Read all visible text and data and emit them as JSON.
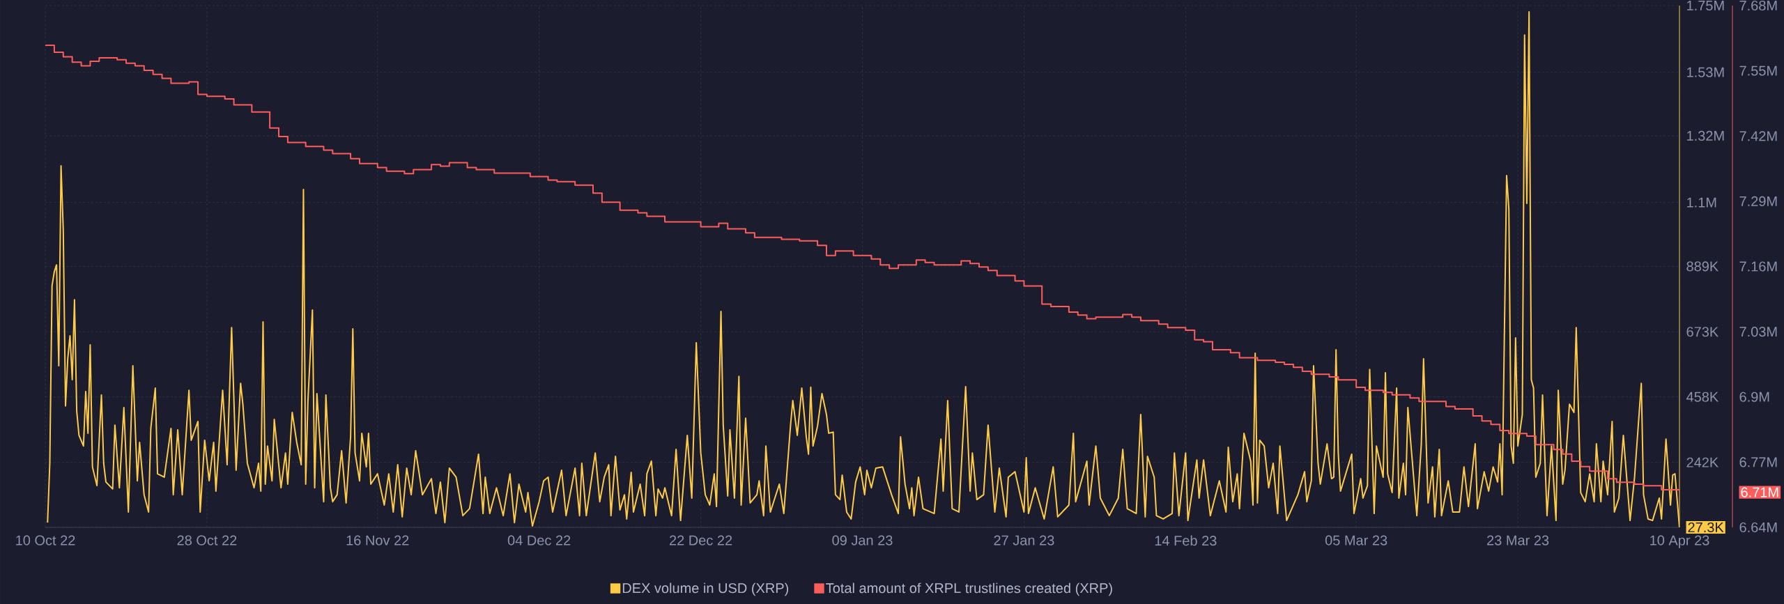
{
  "chart_data": {
    "type": "line",
    "xlim": [
      "2022-10-10",
      "2023-04-10"
    ],
    "xticks": [
      {
        "value": "2022-10-10",
        "label": "10 Oct 22"
      },
      {
        "value": "2022-10-28",
        "label": "28 Oct 22"
      },
      {
        "value": "2022-11-16",
        "label": "16 Nov 22"
      },
      {
        "value": "2022-12-04",
        "label": "04 Dec 22"
      },
      {
        "value": "2022-12-22",
        "label": "22 Dec 22"
      },
      {
        "value": "2023-01-09",
        "label": "09 Jan 23"
      },
      {
        "value": "2023-01-27",
        "label": "27 Jan 23"
      },
      {
        "value": "2023-02-14",
        "label": "14 Feb 23"
      },
      {
        "value": "2023-03-05",
        "label": "05 Mar 23"
      },
      {
        "value": "2023-03-23",
        "label": "23 Mar 23"
      },
      {
        "value": "2023-04-10",
        "label": "10 Apr 23"
      }
    ],
    "ylim": [
      27300,
      1750000
    ],
    "yticks": [
      {
        "value": 27300,
        "label": "27.3K"
      },
      {
        "value": 242000,
        "label": "242K"
      },
      {
        "value": 458000,
        "label": "458K"
      },
      {
        "value": 673000,
        "label": "673K"
      },
      {
        "value": 889000,
        "label": "889K"
      },
      {
        "value": 1100000,
        "label": "1.1M"
      },
      {
        "value": 1320000,
        "label": "1.32M"
      },
      {
        "value": 1530000,
        "label": "1.53M"
      },
      {
        "value": 1750000,
        "label": "1.75M"
      }
    ],
    "y2lim": [
      6640000,
      7680000
    ],
    "y2ticks": [
      {
        "value": 6640000,
        "label": "6.64M"
      },
      {
        "value": 6710000,
        "label": "6.71M"
      },
      {
        "value": 6770000,
        "label": "6.77M"
      },
      {
        "value": 6900000,
        "label": "6.9M"
      },
      {
        "value": 7030000,
        "label": "7.03M"
      },
      {
        "value": 7160000,
        "label": "7.16M"
      },
      {
        "value": 7290000,
        "label": "7.29M"
      },
      {
        "value": 7420000,
        "label": "7.42M"
      },
      {
        "value": 7550000,
        "label": "7.55M"
      },
      {
        "value": 7680000,
        "label": "7.68M"
      }
    ],
    "grid": true,
    "legend": "bottom",
    "series": [
      {
        "name": "DEX volume in USD (XRP)",
        "color": "#ffcb47",
        "x": [
          "2022-10-10T06:00",
          "2022-10-10T12:00",
          "2022-10-10T18:00",
          "2022-10-11T00:00",
          "2022-10-11T06:00",
          "2022-10-11T12:00",
          "2022-10-11T18:00",
          "2022-10-12T00:00",
          "2022-10-12T06:00",
          "2022-10-12T12:00",
          "2022-10-12T18:00",
          "2022-10-13T00:00",
          "2022-10-13T06:00",
          "2022-10-13T12:00",
          "2022-10-13T18:00",
          "2022-10-14T06:00",
          "2022-10-14T12:00",
          "2022-10-14T18:00",
          "2022-10-15T00:00",
          "2022-10-15T06:00",
          "2022-10-15T18:00",
          "2022-10-16T06:00",
          "2022-10-16T12:00",
          "2022-10-16T18:00",
          "2022-10-17T12:00",
          "2022-10-17T18:00",
          "2022-10-18T06:00",
          "2022-10-18T18:00",
          "2022-10-19T06:00",
          "2022-10-19T18:00",
          "2022-10-20T06:00",
          "2022-10-20T12:00",
          "2022-10-21T00:00",
          "2022-10-21T12:00",
          "2022-10-21T18:00",
          "2022-10-22T06:00",
          "2022-10-22T12:00",
          "2022-10-23T06:00",
          "2022-10-24T00:00",
          "2022-10-24T06:00",
          "2022-10-24T18:00",
          "2022-10-25T06:00",
          "2022-10-26T00:00",
          "2022-10-26T06:00",
          "2022-10-27T00:00",
          "2022-10-27T06:00",
          "2022-10-27T18:00",
          "2022-10-28T06:00",
          "2022-10-28T18:00",
          "2022-10-29T00:00",
          "2022-10-29T18:00",
          "2022-10-30T06:00",
          "2022-10-30T18:00",
          "2022-10-31T06:00",
          "2022-10-31T18:00",
          "2022-11-01T00:00",
          "2022-11-01T12:00",
          "2022-11-02T06:00",
          "2022-11-02T18:00",
          "2022-11-03T00:00",
          "2022-11-03T06:00",
          "2022-11-03T12:00",
          "2022-11-03T18:00",
          "2022-11-04T06:00",
          "2022-11-04T12:00",
          "2022-11-05T06:00",
          "2022-11-05T18:00",
          "2022-11-06T00:00",
          "2022-11-06T12:00",
          "2022-11-07T00:00",
          "2022-11-07T12:00",
          "2022-11-07T18:00",
          "2022-11-08T00:00",
          "2022-11-08T06:00",
          "2022-11-08T18:00",
          "2022-11-09T00:00",
          "2022-11-09T06:00",
          "2022-11-10T00:00",
          "2022-11-10T06:00",
          "2022-11-10T18:00",
          "2022-11-11T00:00",
          "2022-11-11T12:00",
          "2022-11-12T00:00",
          "2022-11-12T12:00",
          "2022-11-13T00:00",
          "2022-11-13T06:00",
          "2022-11-13T12:00",
          "2022-11-14T00:00",
          "2022-11-14T06:00",
          "2022-11-14T18:00",
          "2022-11-15T00:00",
          "2022-11-15T06:00",
          "2022-11-16T00:00",
          "2022-11-16T18:00",
          "2022-11-17T06:00",
          "2022-11-17T18:00",
          "2022-11-18T06:00",
          "2022-11-18T18:00",
          "2022-11-19T06:00",
          "2022-11-19T18:00",
          "2022-11-20T06:00",
          "2022-11-21T00:00",
          "2022-11-22T00:00",
          "2022-11-22T12:00",
          "2022-11-23T00:00",
          "2022-11-23T12:00",
          "2022-11-24T00:00",
          "2022-11-24T18:00",
          "2022-11-25T12:00",
          "2022-11-26T06:00",
          "2022-11-27T06:00",
          "2022-11-27T18:00",
          "2022-11-28T00:00",
          "2022-11-28T12:00",
          "2022-11-29T06:00",
          "2022-11-30T00:00",
          "2022-11-30T18:00",
          "2022-12-01T06:00",
          "2022-12-01T18:00",
          "2022-12-02T12:00",
          "2022-12-02T18:00",
          "2022-12-03T06:00",
          "2022-12-04T00:00",
          "2022-12-04T12:00",
          "2022-12-05T00:00",
          "2022-12-05T12:00",
          "2022-12-06T12:00",
          "2022-12-07T00:00",
          "2022-12-08T00:00",
          "2022-12-08T12:00",
          "2022-12-08T18:00",
          "2022-12-09T06:00",
          "2022-12-10T06:00",
          "2022-12-10T18:00",
          "2022-12-11T06:00",
          "2022-12-11T18:00",
          "2022-12-12T00:00",
          "2022-12-12T12:00",
          "2022-12-13T00:00",
          "2022-12-13T12:00",
          "2022-12-13T18:00",
          "2022-12-14T06:00",
          "2022-12-14T12:00",
          "2022-12-15T06:00",
          "2022-12-15T18:00",
          "2022-12-16T00:00",
          "2022-12-16T12:00",
          "2022-12-17T00:00",
          "2022-12-17T06:00",
          "2022-12-17T18:00",
          "2022-12-18T00:00",
          "2022-12-18T18:00",
          "2022-12-19T06:00",
          "2022-12-19T18:00",
          "2022-12-20T12:00",
          "2022-12-21T00:00",
          "2022-12-21T12:00",
          "2022-12-22T00:00",
          "2022-12-22T12:00",
          "2022-12-23T00:00",
          "2022-12-23T12:00",
          "2022-12-23T18:00",
          "2022-12-24T06:00",
          "2022-12-24T12:00",
          "2022-12-25T00:00",
          "2022-12-25T06:00",
          "2022-12-25T18:00",
          "2022-12-26T06:00",
          "2022-12-26T12:00",
          "2022-12-27T00:00",
          "2022-12-27T12:00",
          "2022-12-28T06:00",
          "2022-12-28T12:00",
          "2022-12-29T00:00",
          "2022-12-29T06:00",
          "2022-12-29T18:00",
          "2022-12-30T06:00",
          "2022-12-30T18:00",
          "2022-12-31T06:00",
          "2023-01-01T00:00",
          "2023-01-01T06:00",
          "2023-01-01T18:00",
          "2023-01-02T06:00",
          "2023-01-02T18:00",
          "2023-01-03T00:00",
          "2023-01-03T06:00",
          "2023-01-03T12:00",
          "2023-01-04T00:00",
          "2023-01-04T12:00",
          "2023-01-05T00:00",
          "2023-01-05T06:00",
          "2023-01-05T18:00",
          "2023-01-06T00:00",
          "2023-01-06T12:00",
          "2023-01-06T18:00",
          "2023-01-07T06:00",
          "2023-01-07T18:00",
          "2023-01-08T06:00",
          "2023-01-08T18:00",
          "2023-01-09T06:00",
          "2023-01-09T12:00",
          "2023-01-10T00:00",
          "2023-01-10T12:00",
          "2023-01-11T06:00",
          "2023-01-12T06:00",
          "2023-01-13T00:00",
          "2023-01-13T06:00",
          "2023-01-13T18:00",
          "2023-01-14T06:00",
          "2023-01-14T12:00",
          "2023-01-14T18:00",
          "2023-01-15T06:00",
          "2023-01-15T18:00",
          "2023-01-17T00:00",
          "2023-01-17T18:00",
          "2023-01-18T00:00",
          "2023-01-18T12:00",
          "2023-01-19T00:00",
          "2023-01-19T18:00",
          "2023-01-20T12:00",
          "2023-01-21T00:00",
          "2023-01-21T06:00",
          "2023-01-21T18:00",
          "2023-01-22T12:00",
          "2023-01-23T00:00",
          "2023-01-23T18:00",
          "2023-01-24T06:00",
          "2023-01-25T00:00",
          "2023-01-25T06:00",
          "2023-01-26T00:00",
          "2023-01-27T00:00",
          "2023-01-27T06:00",
          "2023-01-27T12:00",
          "2023-01-28T06:00",
          "2023-01-29T06:00",
          "2023-01-30T06:00",
          "2023-01-30T18:00",
          "2023-02-01T00:00",
          "2023-02-01T12:00",
          "2023-02-01T18:00",
          "2023-02-03T00:00",
          "2023-02-03T06:00",
          "2023-02-04T00:00",
          "2023-02-04T12:00",
          "2023-02-05T12:00",
          "2023-02-06T12:00",
          "2023-02-07T00:00",
          "2023-02-07T12:00",
          "2023-02-08T12:00",
          "2023-02-09T00:00",
          "2023-02-09T12:00",
          "2023-02-09T18:00",
          "2023-02-10T12:00",
          "2023-02-10T18:00",
          "2023-02-11T12:00",
          "2023-02-12T12:00",
          "2023-02-12T18:00",
          "2023-02-13T06:00",
          "2023-02-14T00:00",
          "2023-02-14T06:00",
          "2023-02-15T06:00",
          "2023-02-15T12:00",
          "2023-02-16T00:00",
          "2023-02-16T18:00",
          "2023-02-17T18:00",
          "2023-02-18T12:00",
          "2023-02-18T18:00",
          "2023-02-19T06:00",
          "2023-02-19T18:00",
          "2023-02-20T00:00",
          "2023-02-20T12:00",
          "2023-02-21T06:00",
          "2023-02-21T12:00",
          "2023-02-21T18:00",
          "2023-02-22T00:00",
          "2023-02-22T06:00",
          "2023-02-22T18:00",
          "2023-02-23T06:00",
          "2023-02-23T18:00",
          "2023-02-24T06:00",
          "2023-02-24T12:00",
          "2023-02-25T06:00",
          "2023-02-26T12:00",
          "2023-02-27T06:00",
          "2023-02-27T12:00",
          "2023-02-28T00:00",
          "2023-02-28T06:00",
          "2023-02-28T18:00",
          "2023-03-01T00:00",
          "2023-03-01T18:00",
          "2023-03-02T06:00",
          "2023-03-02T12:00",
          "2023-03-02T18:00",
          "2023-03-03T00:00",
          "2023-03-03T06:00",
          "2023-03-04T12:00",
          "2023-03-04T18:00",
          "2023-03-05T12:00",
          "2023-03-05T18:00",
          "2023-03-06T06:00",
          "2023-03-06T12:00",
          "2023-03-07T00:00",
          "2023-03-07T06:00",
          "2023-03-08T00:00",
          "2023-03-08T06:00",
          "2023-03-08T12:00",
          "2023-03-09T00:00",
          "2023-03-09T12:00",
          "2023-03-09T18:00",
          "2023-03-10T06:00",
          "2023-03-10T12:00",
          "2023-03-10T18:00",
          "2023-03-11T18:00",
          "2023-03-12T06:00",
          "2023-03-12T12:00",
          "2023-03-13T00:00",
          "2023-03-13T12:00",
          "2023-03-13T18:00",
          "2023-03-14T06:00",
          "2023-03-14T12:00",
          "2023-03-15T06:00",
          "2023-03-15T18:00",
          "2023-03-16T12:00",
          "2023-03-17T00:00",
          "2023-03-17T12:00",
          "2023-03-18T06:00",
          "2023-03-18T12:00",
          "2023-03-19T06:00",
          "2023-03-19T18:00",
          "2023-03-20T06:00",
          "2023-03-20T18:00",
          "2023-03-21T00:00",
          "2023-03-21T06:00",
          "2023-03-21T18:00",
          "2023-03-22T00:00",
          "2023-03-22T06:00",
          "2023-03-22T12:00",
          "2023-03-22T18:00",
          "2023-03-23T00:00",
          "2023-03-23T12:00",
          "2023-03-23T18:00",
          "2023-03-24T00:00",
          "2023-03-24T06:00",
          "2023-03-24T12:00",
          "2023-03-24T18:00",
          "2023-03-25T00:00",
          "2023-03-25T12:00",
          "2023-03-25T18:00",
          "2023-03-26T06:00",
          "2023-03-26T18:00",
          "2023-03-27T06:00",
          "2023-03-27T12:00",
          "2023-03-28T00:00",
          "2023-03-28T06:00",
          "2023-03-28T18:00",
          "2023-03-29T06:00",
          "2023-03-29T12:00",
          "2023-03-30T00:00",
          "2023-03-30T12:00",
          "2023-03-31T00:00",
          "2023-03-31T12:00",
          "2023-03-31T18:00",
          "2023-04-01T06:00",
          "2023-04-01T12:00",
          "2023-04-02T00:00",
          "2023-04-02T12:00",
          "2023-04-02T18:00",
          "2023-04-03T06:00",
          "2023-04-03T18:00",
          "2023-04-04T12:00",
          "2023-04-05T00:00",
          "2023-04-05T18:00",
          "2023-04-06T00:00",
          "2023-04-06T12:00",
          "2023-04-07T00:00",
          "2023-04-07T18:00",
          "2023-04-08T00:00",
          "2023-04-08T12:00",
          "2023-04-09T00:00",
          "2023-04-09T06:00",
          "2023-04-09T12:00",
          "2023-04-10T00:00"
        ],
        "values": [
          43000,
          239000,
          825000,
          871000,
          894000,
          561000,
          1221000,
          1009000,
          428000,
          584000,
          660000,
          515000,
          779000,
          411000,
          331000,
          296000,
          476000,
          338000,
          630000,
          227000,
          165000,
          464000,
          239000,
          177000,
          154000,
          365000,
          158000,
          423000,
          78000,
          561000,
          181000,
          308000,
          135000,
          78000,
          354000,
          487000,
          204000,
          193000,
          354000,
          135000,
          349000,
          135000,
          480000,
          315000,
          377000,
          78000,
          315000,
          181000,
          308000,
          147000,
          480000,
          234000,
          687000,
          216000,
          503000,
          434000,
          239000,
          158000,
          239000,
          147000,
          706000,
          170000,
          296000,
          181000,
          384000,
          158000,
          273000,
          170000,
          407000,
          308000,
          234000,
          1143000,
          170000,
          446000,
          745000,
          158000,
          469000,
          112000,
          464000,
          158000,
          112000,
          135000,
          280000,
          108000,
          326000,
          683000,
          273000,
          181000,
          338000,
          227000,
          338000,
          170000,
          204000,
          101000,
          204000,
          78000,
          234000,
          62000,
          223000,
          135000,
          280000,
          135000,
          188000,
          73000,
          177000,
          43000,
          223000,
          193000,
          66000,
          89000,
          269000,
          73000,
          193000,
          73000,
          158000,
          66000,
          204000,
          43000,
          170000,
          78000,
          142000,
          32000,
          112000,
          181000,
          193000,
          78000,
          216000,
          66000,
          223000,
          66000,
          239000,
          66000,
          273000,
          112000,
          193000,
          234000,
          66000,
          262000,
          85000,
          135000,
          55000,
          209000,
          78000,
          170000,
          66000,
          204000,
          246000,
          66000,
          154000,
          124000,
          158000,
          66000,
          285000,
          50000,
          331000,
          124000,
          637000,
          273000,
          135000,
          101000,
          204000,
          96000,
          740000,
          365000,
          131000,
          349000,
          124000,
          526000,
          101000,
          388000,
          108000,
          135000,
          181000,
          66000,
          296000,
          78000,
          124000,
          170000,
          73000,
          365000,
          446000,
          331000,
          487000,
          326000,
          269000,
          490000,
          296000,
          361000,
          469000,
          400000,
          338000,
          342000,
          135000,
          119000,
          200000,
          78000,
          55000,
          177000,
          227000,
          135000,
          216000,
          158000,
          223000,
          227000,
          135000,
          73000,
          326000,
          170000,
          89000,
          158000,
          66000,
          193000,
          89000,
          73000,
          319000,
          147000,
          446000,
          89000,
          78000,
          492000,
          147000,
          273000,
          119000,
          135000,
          365000,
          78000,
          223000,
          62000,
          193000,
          211000,
          78000,
          257000,
          73000,
          158000,
          55000,
          227000,
          62000,
          101000,
          338000,
          112000,
          246000,
          101000,
          296000,
          124000,
          66000,
          124000,
          285000,
          89000,
          73000,
          400000,
          62000,
          262000,
          193000,
          66000,
          55000,
          73000,
          273000,
          66000,
          273000,
          50000,
          250000,
          124000,
          250000,
          66000,
          181000,
          78000,
          292000,
          112000,
          204000,
          89000,
          338000,
          246000,
          101000,
          602000,
          108000,
          315000,
          296000,
          158000,
          239000,
          73000,
          296000,
          50000,
          135000,
          211000,
          112000,
          181000,
          561000,
          239000,
          170000,
          303000,
          188000,
          193000,
          614000,
          273000,
          147000,
          269000,
          73000,
          188000,
          124000,
          165000,
          549000,
          73000,
          296000,
          193000,
          538000,
          204000,
          142000,
          487000,
          124000,
          239000,
          135000,
          423000,
          66000,
          303000,
          584000,
          108000,
          227000,
          62000,
          285000,
          66000,
          181000,
          78000,
          78000,
          227000,
          96000,
          303000,
          89000,
          211000,
          147000,
          227000,
          177000,
          303000,
          135000,
          1189000,
          1078000,
          296000,
          239000,
          653000,
          296000,
          400000,
          1653000,
          1097000,
          1729000,
          515000,
          487000,
          193000,
          239000,
          464000,
          66000,
          296000,
          50000,
          480000,
          170000,
          216000,
          434000,
          407000,
          687000,
          142000,
          112000,
          204000,
          112000,
          303000,
          112000,
          246000,
          135000,
          377000,
          78000,
          124000,
          331000,
          50000,
          193000,
          503000,
          135000,
          55000,
          50000,
          124000,
          55000,
          319000,
          101000,
          200000,
          204000,
          27300
        ]
      },
      {
        "name": "Total amount of XRPL trustlines created (XRP)",
        "color": "#ff5c5c",
        "type": "step",
        "axis": "y2",
        "x": [
          "2022-10-10",
          "2022-10-11",
          "2022-10-12",
          "2022-10-13",
          "2022-10-14",
          "2022-10-15",
          "2022-10-16",
          "2022-10-18",
          "2022-10-19",
          "2022-10-20",
          "2022-10-21",
          "2022-10-22",
          "2022-10-23",
          "2022-10-24",
          "2022-10-26",
          "2022-10-27",
          "2022-10-28",
          "2022-10-30",
          "2022-10-31",
          "2022-11-02",
          "2022-11-04",
          "2022-11-05",
          "2022-11-06",
          "2022-11-08",
          "2022-11-10",
          "2022-11-11",
          "2022-11-13",
          "2022-11-14",
          "2022-11-16",
          "2022-11-17",
          "2022-11-19",
          "2022-11-20",
          "2022-11-22",
          "2022-11-23",
          "2022-11-24",
          "2022-11-26",
          "2022-11-27",
          "2022-11-29",
          "2022-12-03",
          "2022-12-05",
          "2022-12-06",
          "2022-12-08",
          "2022-12-10",
          "2022-12-11",
          "2022-12-13",
          "2022-12-15",
          "2022-12-16",
          "2022-12-18",
          "2022-12-22",
          "2022-12-24",
          "2022-12-25",
          "2022-12-27",
          "2022-12-28",
          "2022-12-31",
          "2023-01-02",
          "2023-01-04",
          "2023-01-05",
          "2023-01-06",
          "2023-01-08",
          "2023-01-10",
          "2023-01-11",
          "2023-01-12",
          "2023-01-13",
          "2023-01-15",
          "2023-01-16",
          "2023-01-17",
          "2023-01-20",
          "2023-01-21",
          "2023-01-22",
          "2023-01-23",
          "2023-01-24",
          "2023-01-26",
          "2023-01-27",
          "2023-01-29",
          "2023-01-30",
          "2023-02-01",
          "2023-02-02",
          "2023-02-03",
          "2023-02-04",
          "2023-02-07",
          "2023-02-08",
          "2023-02-09",
          "2023-02-11",
          "2023-02-12",
          "2023-02-14",
          "2023-02-15",
          "2023-02-16",
          "2023-02-17",
          "2023-02-19",
          "2023-02-20",
          "2023-02-22",
          "2023-02-24",
          "2023-02-25",
          "2023-02-26",
          "2023-02-27",
          "2023-02-28",
          "2023-03-02",
          "2023-03-03",
          "2023-03-05",
          "2023-03-06",
          "2023-03-08",
          "2023-03-09",
          "2023-03-11",
          "2023-03-12",
          "2023-03-15",
          "2023-03-16",
          "2023-03-18",
          "2023-03-19",
          "2023-03-20",
          "2023-03-21",
          "2023-03-22",
          "2023-03-24",
          "2023-03-25",
          "2023-03-27",
          "2023-03-28",
          "2023-03-29",
          "2023-03-30",
          "2023-03-31",
          "2023-04-02",
          "2023-04-03",
          "2023-04-05",
          "2023-04-06",
          "2023-04-08",
          "2023-04-10"
        ],
        "values": [
          7601000,
          7587000,
          7578000,
          7567000,
          7560000,
          7569000,
          7576000,
          7572000,
          7565000,
          7560000,
          7551000,
          7543000,
          7535000,
          7525000,
          7528000,
          7503000,
          7499000,
          7494000,
          7482000,
          7468000,
          7436000,
          7419000,
          7407000,
          7399000,
          7392000,
          7385000,
          7375000,
          7365000,
          7357000,
          7350000,
          7345000,
          7353000,
          7363000,
          7360000,
          7367000,
          7357000,
          7353000,
          7346000,
          7339000,
          7332000,
          7329000,
          7322000,
          7306000,
          7288000,
          7272000,
          7267000,
          7260000,
          7249000,
          7239000,
          7246000,
          7235000,
          7227000,
          7218000,
          7214000,
          7211000,
          7202000,
          7182000,
          7191000,
          7182000,
          7175000,
          7163000,
          7156000,
          7163000,
          7173000,
          7168000,
          7163000,
          7171000,
          7166000,
          7159000,
          7152000,
          7142000,
          7131000,
          7121000,
          7085000,
          7080000,
          7069000,
          7063000,
          7056000,
          7059000,
          7064000,
          7059000,
          7052000,
          7045000,
          7038000,
          7033000,
          7014000,
          7010000,
          6994000,
          6988000,
          6978000,
          6973000,
          6969000,
          6965000,
          6959000,
          6951000,
          6945000,
          6940000,
          6934000,
          6919000,
          6913000,
          6909000,
          6904000,
          6898000,
          6891000,
          6881000,
          6876000,
          6862000,
          6852000,
          6845000,
          6833000,
          6827000,
          6822000,
          6805000,
          6795000,
          6786000,
          6772000,
          6761000,
          6752000,
          6737000,
          6730000,
          6726000,
          6723000,
          6715000,
          6710000
        ]
      }
    ]
  }
}
